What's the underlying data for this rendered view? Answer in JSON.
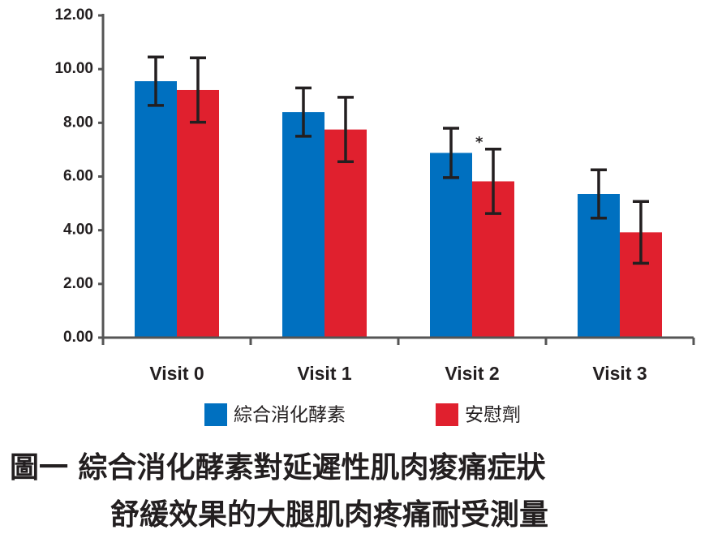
{
  "chart_data": {
    "type": "bar",
    "title": [
      "圖一  綜合消化酵素對延遲性肌肉痠痛症狀",
      "舒緩效果的大腿肌肉疼痛耐受測量"
    ],
    "categories": [
      "Visit 0",
      "Visit 1",
      "Visit 2",
      "Visit 3"
    ],
    "series": [
      {
        "name": "綜合消化酵素",
        "color": "#0070c0",
        "values": [
          9.55,
          8.4,
          6.88,
          5.35
        ],
        "errors": [
          0.9,
          0.9,
          0.92,
          0.9
        ]
      },
      {
        "name": "安慰劑",
        "color": "#e0202e",
        "values": [
          9.22,
          7.75,
          5.82,
          3.92
        ],
        "errors": [
          1.2,
          1.2,
          1.2,
          1.15
        ]
      }
    ],
    "annotation": "*",
    "ylim": [
      0,
      12
    ],
    "yticks": [
      {
        "value": 0,
        "label": "0.00"
      },
      {
        "value": 2,
        "label": "2.00"
      },
      {
        "value": 4,
        "label": "4.00"
      },
      {
        "value": 6,
        "label": "6.00"
      },
      {
        "value": 8,
        "label": "8.00"
      },
      {
        "value": 10,
        "label": "10.00"
      },
      {
        "value": 12,
        "label": "12.00"
      }
    ]
  }
}
